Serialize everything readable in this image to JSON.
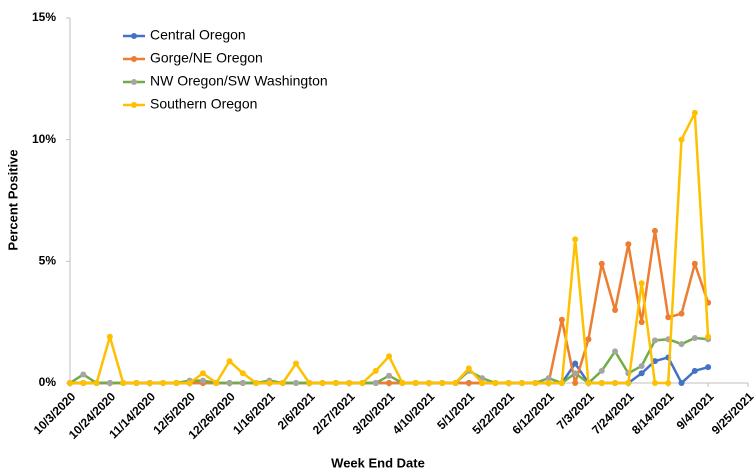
{
  "chart_data": {
    "type": "line",
    "x_label": "Week End Date",
    "y_label": "Percent Positive",
    "x": [
      "10/3/2020",
      "10/10/2020",
      "10/17/2020",
      "10/24/2020",
      "10/31/2020",
      "11/7/2020",
      "11/14/2020",
      "11/21/2020",
      "11/28/2020",
      "12/5/2020",
      "12/12/2020",
      "12/19/2020",
      "12/26/2020",
      "1/2/2021",
      "1/9/2021",
      "1/16/2021",
      "1/23/2021",
      "1/30/2021",
      "2/6/2021",
      "2/13/2021",
      "2/20/2021",
      "2/27/2021",
      "3/6/2021",
      "3/13/2021",
      "3/20/2021",
      "3/27/2021",
      "4/3/2021",
      "4/10/2021",
      "4/17/2021",
      "4/24/2021",
      "5/1/2021",
      "5/8/2021",
      "5/15/2021",
      "5/22/2021",
      "5/29/2021",
      "6/5/2021",
      "6/12/2021",
      "6/19/2021",
      "6/26/2021",
      "7/3/2021",
      "7/10/2021",
      "7/17/2021",
      "7/24/2021",
      "7/31/2021",
      "8/7/2021",
      "8/14/2021",
      "8/21/2021",
      "8/28/2021",
      "9/4/2021"
    ],
    "xlim": [
      "10/3/2020",
      "9/25/2021"
    ],
    "xticks": [
      "10/3/2020",
      "10/24/2020",
      "11/14/2020",
      "12/5/2020",
      "12/26/2020",
      "1/16/2021",
      "2/6/2021",
      "2/27/2021",
      "3/20/2021",
      "4/10/2021",
      "5/1/2021",
      "5/22/2021",
      "6/12/2021",
      "7/3/2021",
      "7/24/2021",
      "8/14/2021",
      "9/4/2021",
      "9/25/2021"
    ],
    "ylim": [
      0,
      15
    ],
    "yticks": [
      {
        "value": 0,
        "label": "0%"
      },
      {
        "value": 5,
        "label": "5%"
      },
      {
        "value": 10,
        "label": "10%"
      },
      {
        "value": 15,
        "label": "15%"
      }
    ],
    "grid": false,
    "legend": "top-left",
    "series": [
      {
        "name": "Central Oregon",
        "color": "#4472c4",
        "marker_color": "#4472c4",
        "values": [
          0,
          0,
          0,
          0,
          0,
          0,
          0,
          0,
          0,
          0,
          0,
          0,
          0,
          0,
          0,
          0,
          0,
          0,
          0,
          0,
          0,
          0,
          0,
          0,
          0,
          0,
          0,
          0,
          0,
          0,
          0,
          0,
          0,
          0,
          0,
          0,
          0,
          0,
          0.8,
          0,
          0,
          0,
          0,
          0.4,
          0.9,
          1.05,
          0,
          0.5,
          0.65
        ]
      },
      {
        "name": "Gorge/NE Oregon",
        "color": "#ed7d31",
        "marker_color": "#ed7d31",
        "values": [
          0,
          0,
          0,
          0,
          0,
          0,
          0,
          0,
          0,
          0,
          0,
          0,
          0,
          0,
          0,
          0,
          0,
          0,
          0,
          0,
          0,
          0,
          0,
          0,
          0,
          0,
          0,
          0,
          0,
          0,
          0,
          0,
          0,
          0,
          0,
          0,
          0,
          2.6,
          0,
          1.8,
          4.9,
          3.0,
          5.7,
          2.5,
          6.25,
          2.7,
          2.85,
          4.9,
          3.3
        ]
      },
      {
        "name": "NW Oregon/SW Washington",
        "color": "#70ad47",
        "marker_color": "#a5a5a5",
        "values": [
          0,
          0.35,
          0,
          0,
          0,
          0,
          0,
          0,
          0,
          0.1,
          0.1,
          0,
          0,
          0,
          0,
          0.1,
          0,
          0,
          0,
          0,
          0,
          0,
          0,
          0,
          0.3,
          0,
          0,
          0,
          0,
          0,
          0.5,
          0.2,
          0,
          0,
          0,
          0,
          0.2,
          0,
          0.4,
          0,
          0.5,
          1.3,
          0.4,
          0.7,
          1.75,
          1.8,
          1.6,
          1.85,
          1.8
        ]
      },
      {
        "name": "Southern Oregon",
        "color": "#ffc000",
        "marker_color": "#ffc000",
        "values": [
          0,
          0,
          0,
          1.9,
          0,
          0,
          0,
          0,
          0,
          0,
          0.4,
          0,
          0.9,
          0.4,
          0,
          0,
          0,
          0.8,
          0,
          0,
          0,
          0,
          0,
          0.5,
          1.1,
          0,
          0,
          0,
          0,
          0,
          0.6,
          0,
          0,
          0,
          0,
          0,
          0,
          0,
          5.9,
          0,
          0,
          0,
          0,
          4.1,
          0,
          0,
          10.0,
          11.1,
          1.9
        ]
      }
    ]
  }
}
